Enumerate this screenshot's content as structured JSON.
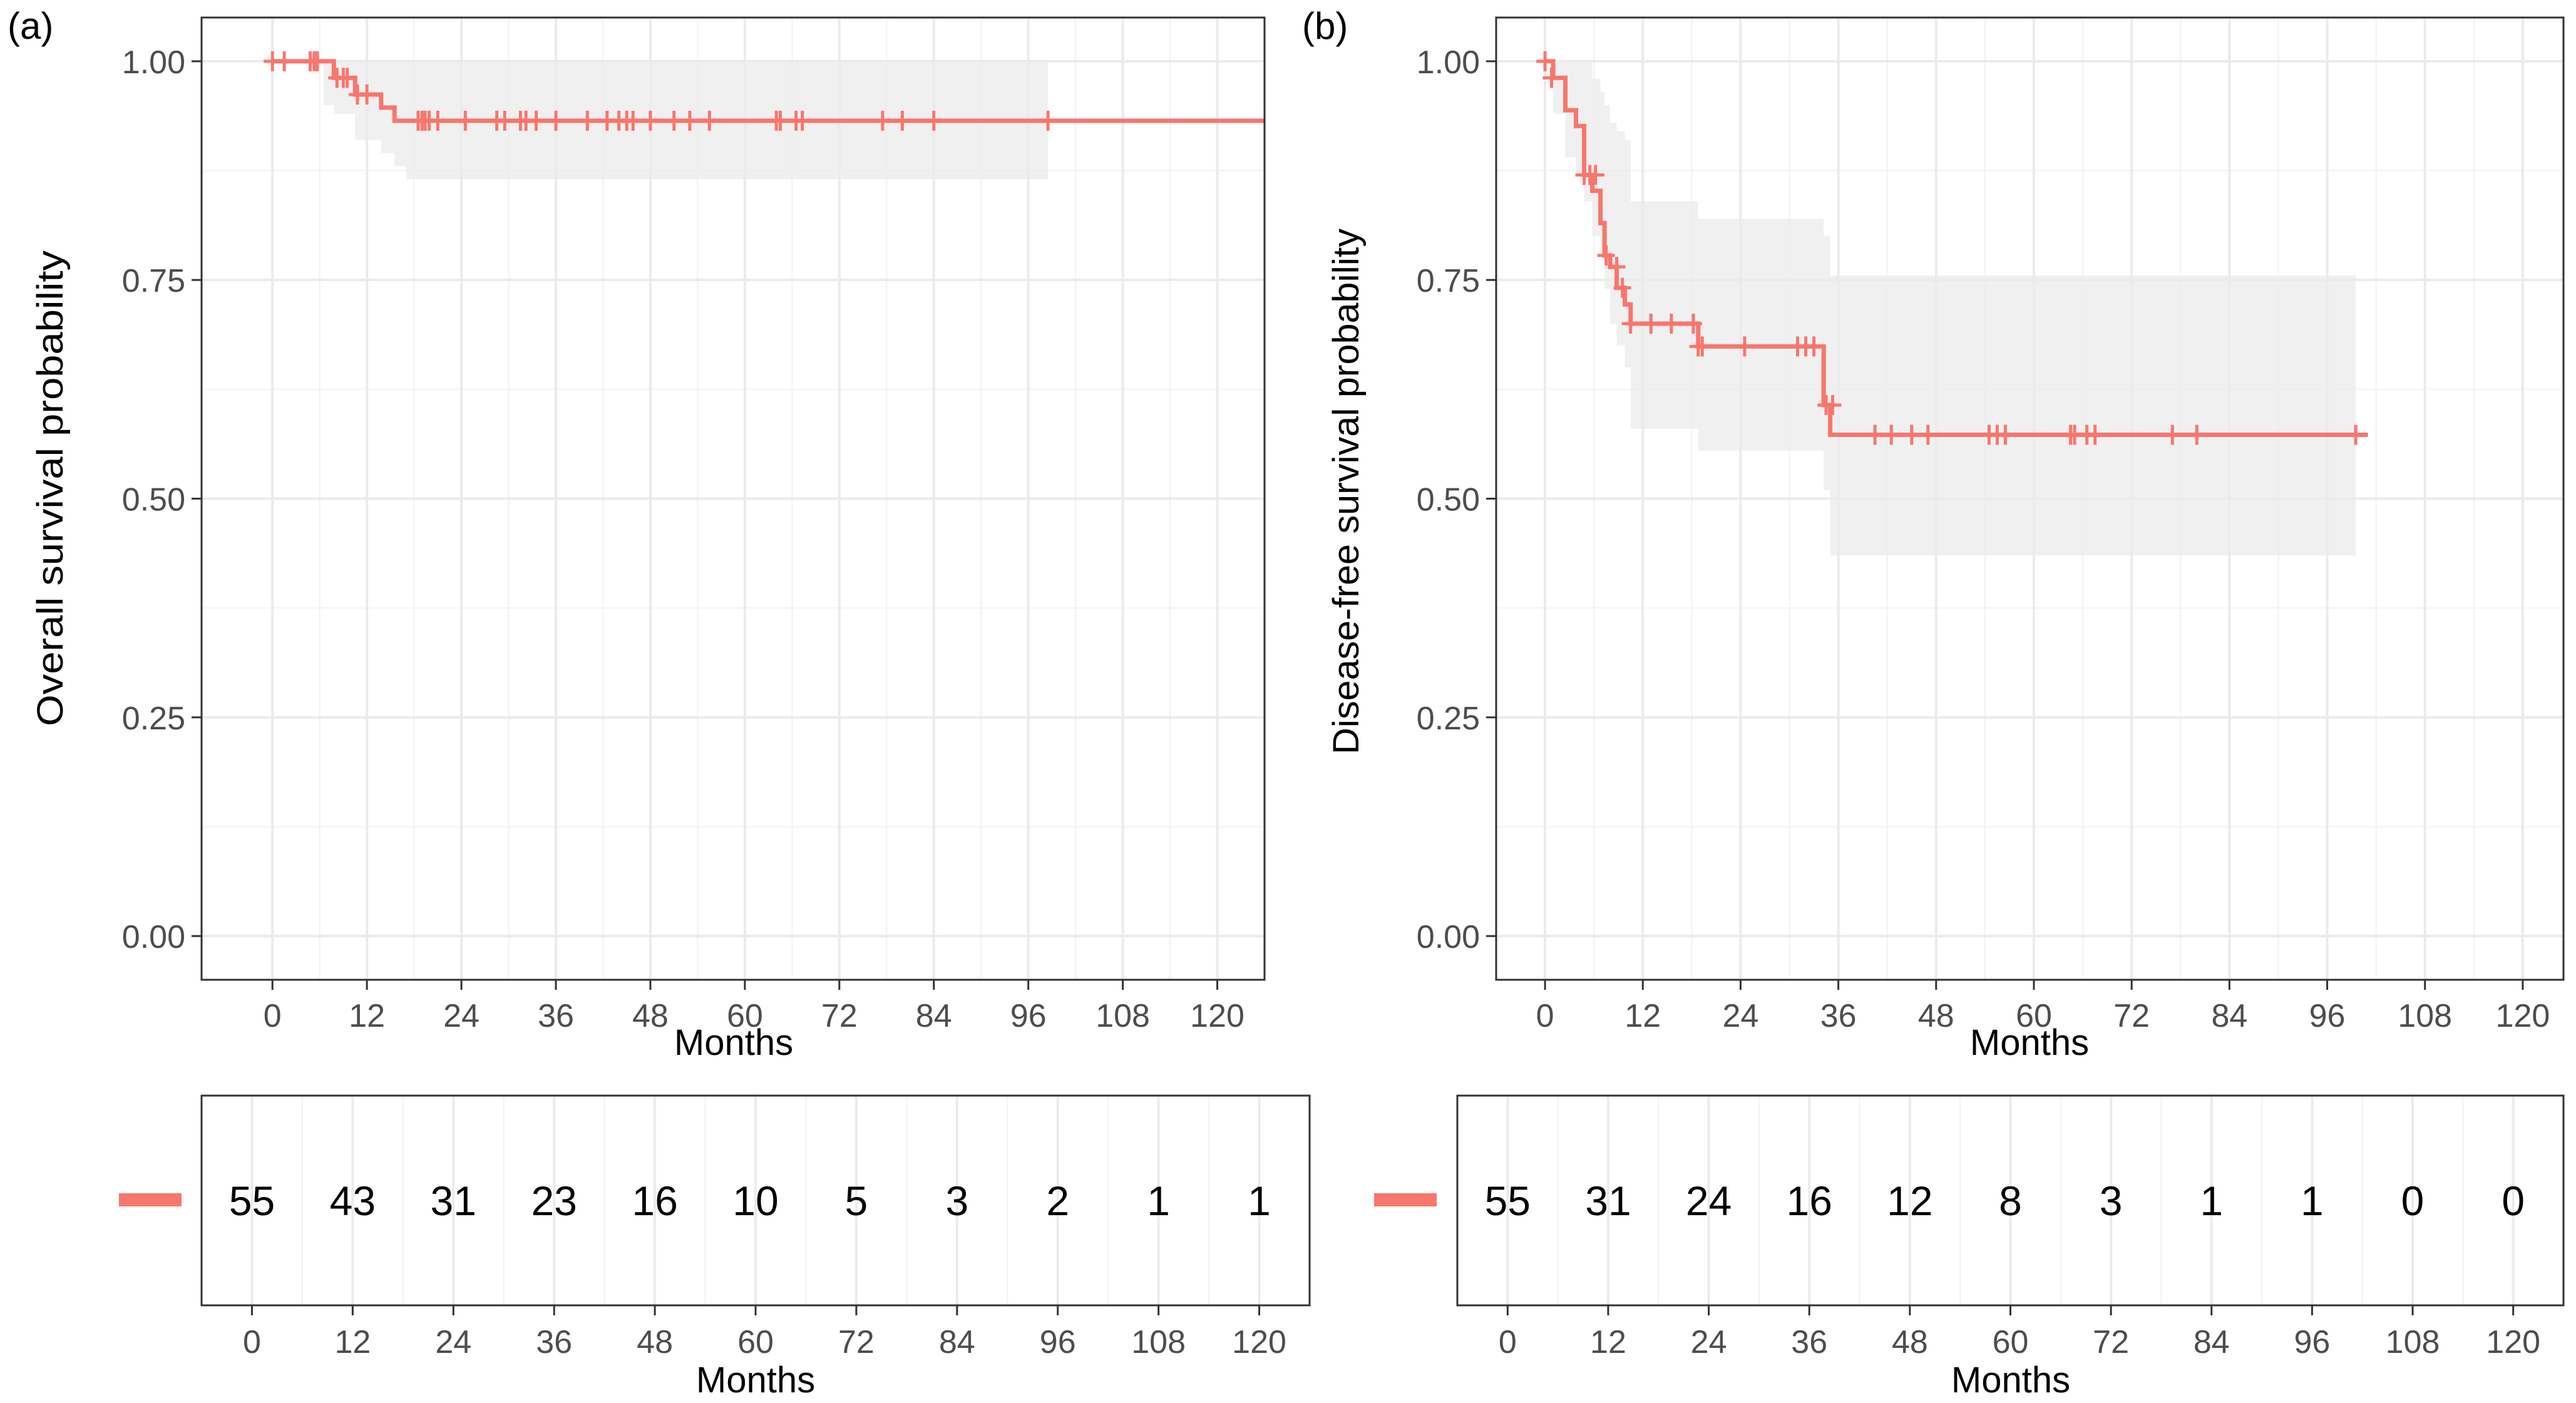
{
  "chart_data": [
    {
      "type": "line",
      "panel_label": "(a)",
      "ylabel": "Overall survival probability",
      "xlabel": "Months",
      "xlim": [
        -9,
        126
      ],
      "ylim": [
        -0.05,
        1.05
      ],
      "x_ticks": [
        0,
        12,
        24,
        36,
        48,
        60,
        72,
        84,
        96,
        108,
        120
      ],
      "y_ticks": [
        0.0,
        0.25,
        0.5,
        0.75,
        1.0
      ],
      "y_tick_labels": [
        "0.00",
        "0.25",
        "0.50",
        "0.75",
        "1.00"
      ],
      "line_color": "#f8766d",
      "ci_color": "#ebebeb",
      "series": [
        {
          "name": "Overall survival",
          "step": {
            "x": [
              0,
              7.8,
              7.8,
              10.5,
              10.5,
              13.8,
              13.8,
              15.5,
              15.5,
              126
            ],
            "y": [
              1.0,
              1.0,
              0.981,
              0.981,
              0.962,
              0.962,
              0.947,
              0.947,
              0.932,
              0.932
            ]
          },
          "ci_band": {
            "x": [
              0,
              6.5,
              7.8,
              10.5,
              13.8,
              15.5,
              17.0,
              98.5
            ],
            "upper": [
              1.0,
              1.0,
              1.0,
              1.0,
              1.0,
              1.0,
              1.0,
              1.0
            ],
            "lower": [
              1.0,
              0.95,
              0.94,
              0.91,
              0.895,
              0.88,
              0.865,
              0.865
            ]
          },
          "censor_x": [
            0,
            1.5,
            4.8,
            5.3,
            5.7,
            8.2,
            9,
            9.5,
            10.8,
            12,
            18.5,
            19,
            19.4,
            19.9,
            21,
            24.5,
            28.5,
            29.5,
            31.5,
            32.2,
            33.5,
            36,
            40,
            42.5,
            44,
            45,
            45.8,
            48,
            51,
            53,
            55.5,
            64,
            64.5,
            66.5,
            67.3,
            77.5,
            80,
            84,
            98.5
          ],
          "censor_y": [
            1.0,
            1.0,
            1.0,
            1.0,
            1.0,
            0.981,
            0.981,
            0.981,
            0.962,
            0.962,
            0.932,
            0.932,
            0.932,
            0.932,
            0.932,
            0.932,
            0.932,
            0.932,
            0.932,
            0.932,
            0.932,
            0.932,
            0.932,
            0.932,
            0.932,
            0.932,
            0.932,
            0.932,
            0.932,
            0.932,
            0.932,
            0.932,
            0.932,
            0.932,
            0.932,
            0.932,
            0.932,
            0.932,
            0.932
          ]
        }
      ],
      "risk_table": {
        "xlabel": "Months",
        "times": [
          0,
          12,
          24,
          36,
          48,
          60,
          72,
          84,
          96,
          108,
          120
        ],
        "counts": [
          "55",
          "43",
          "31",
          "23",
          "16",
          "10",
          "5",
          "3",
          "2",
          "1",
          "1"
        ]
      }
    },
    {
      "type": "line",
      "panel_label": "(b)",
      "ylabel": "Disease-free survival probability",
      "xlabel": "Months",
      "xlim": [
        -6,
        125
      ],
      "ylim": [
        -0.05,
        1.05
      ],
      "x_ticks": [
        0,
        12,
        24,
        36,
        48,
        60,
        72,
        84,
        96,
        108,
        120
      ],
      "y_ticks": [
        0.0,
        0.25,
        0.5,
        0.75,
        1.0
      ],
      "y_tick_labels": [
        "0.00",
        "0.25",
        "0.50",
        "0.75",
        "1.00"
      ],
      "line_color": "#f8766d",
      "ci_color": "#ebebeb",
      "series": [
        {
          "name": "Disease-free survival",
          "step": {
            "x": [
              0,
              1.0,
              1.0,
              2.5,
              2.5,
              3.8,
              3.8,
              4.8,
              4.8,
              5.8,
              5.8,
              6.8,
              6.8,
              7.3,
              7.3,
              8.0,
              8.0,
              8.8,
              8.8,
              9.8,
              9.8,
              10.5,
              10.5,
              18.8,
              18.8,
              34.2,
              34.2,
              35.0,
              35.0,
              101
            ],
            "y": [
              1.0,
              1.0,
              0.981,
              0.981,
              0.944,
              0.944,
              0.926,
              0.926,
              0.87,
              0.87,
              0.852,
              0.852,
              0.815,
              0.815,
              0.778,
              0.778,
              0.765,
              0.765,
              0.741,
              0.741,
              0.722,
              0.722,
              0.7,
              0.7,
              0.674,
              0.674,
              0.607,
              0.607,
              0.573,
              0.573
            ]
          },
          "ci_band": {
            "x": [
              0,
              1.0,
              2.5,
              3.8,
              4.8,
              5.8,
              6.8,
              7.3,
              8.0,
              8.8,
              9.8,
              10.5,
              18.8,
              34.2,
              35.0,
              99.5
            ],
            "upper": [
              1.0,
              1.0,
              1.0,
              1.0,
              1.0,
              0.98,
              0.965,
              0.95,
              0.93,
              0.92,
              0.91,
              0.84,
              0.82,
              0.8,
              0.755,
              0.755
            ],
            "lower": [
              1.0,
              0.94,
              0.89,
              0.87,
              0.84,
              0.8,
              0.78,
              0.74,
              0.7,
              0.675,
              0.65,
              0.58,
              0.555,
              0.51,
              0.435,
              0.435
            ]
          },
          "censor_x": [
            0,
            0.8,
            4.8,
            5.5,
            6.2,
            7.5,
            8.8,
            9.5,
            10.5,
            13,
            15.5,
            18.2,
            18.8,
            19.3,
            24.5,
            31,
            32,
            33,
            34.5,
            35.3,
            40.5,
            42.5,
            45,
            47,
            54.5,
            55.5,
            56.5,
            64.5,
            65,
            66.5,
            67.5,
            77,
            80,
            99.5
          ],
          "censor_y": [
            1.0,
            0.981,
            0.87,
            0.87,
            0.87,
            0.778,
            0.765,
            0.741,
            0.7,
            0.7,
            0.7,
            0.7,
            0.674,
            0.674,
            0.674,
            0.674,
            0.674,
            0.674,
            0.607,
            0.607,
            0.573,
            0.573,
            0.573,
            0.573,
            0.573,
            0.573,
            0.573,
            0.573,
            0.573,
            0.573,
            0.573,
            0.573,
            0.573,
            0.573
          ]
        }
      ],
      "risk_table": {
        "xlabel": "Months",
        "times": [
          0,
          12,
          24,
          36,
          48,
          60,
          72,
          84,
          96,
          108,
          120
        ],
        "counts": [
          "55",
          "31",
          "24",
          "16",
          "12",
          "8",
          "3",
          "1",
          "1",
          "0",
          "0"
        ]
      }
    }
  ]
}
